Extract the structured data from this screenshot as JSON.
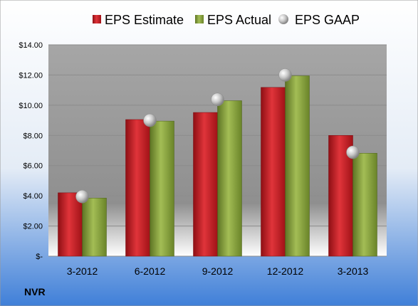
{
  "colors": {
    "background_top": "#ffffff",
    "background_bottom": "#3f7fd8",
    "plot_top": "#a6a6a6",
    "plot_bottom": "#ffffff",
    "grid": "#8c8c8c",
    "estimate": "#c0171d",
    "actual": "#7f9a35",
    "gaap": "#b5b5b5"
  },
  "chart_data": {
    "type": "bar",
    "title": "",
    "xlabel": "",
    "ylabel": "",
    "ticker": "NVR",
    "categories": [
      "3-2012",
      "6-2012",
      "9-2012",
      "12-2012",
      "3-2013"
    ],
    "ylim": [
      0,
      14
    ],
    "y_ticks": [
      {
        "value": 0,
        "label": "$-"
      },
      {
        "value": 2,
        "label": "$2.00"
      },
      {
        "value": 4,
        "label": "$4.00"
      },
      {
        "value": 6,
        "label": "$6.00"
      },
      {
        "value": 8,
        "label": "$8.00"
      },
      {
        "value": 10,
        "label": "$10.00"
      },
      {
        "value": 12,
        "label": "$12.00"
      },
      {
        "value": 14,
        "label": "$14.00"
      }
    ],
    "grid": true,
    "legend_position": "top",
    "series": [
      {
        "name": "EPS Estimate",
        "kind": "bar",
        "values": [
          4.2,
          9.05,
          9.52,
          11.18,
          8.0
        ]
      },
      {
        "name": "EPS Actual",
        "kind": "bar",
        "values": [
          3.85,
          8.95,
          10.3,
          11.95,
          6.82
        ]
      },
      {
        "name": "EPS GAAP",
        "kind": "marker",
        "values": [
          3.95,
          9.0,
          10.38,
          12.0,
          6.88
        ]
      }
    ]
  }
}
